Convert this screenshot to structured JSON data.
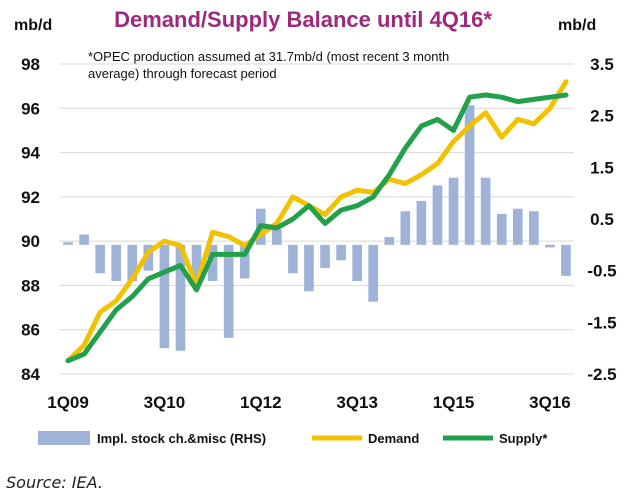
{
  "chart_data": {
    "type": "bar+line",
    "title": "Demand/Supply Balance until 4Q16*",
    "left_unit": "mb/d",
    "right_unit": "mb/d",
    "note_lines": [
      "*OPEC production assumed at 31.7mb/d  (most recent 3 month",
      "average) through forecast period"
    ],
    "x_ticks": [
      "1Q09",
      "3Q10",
      "1Q12",
      "3Q13",
      "1Q15",
      "3Q16"
    ],
    "y_left": {
      "min": 84,
      "max": 98,
      "ticks": [
        "84",
        "86",
        "88",
        "90",
        "92",
        "94",
        "96",
        "98"
      ]
    },
    "y_right": {
      "min": -2.5,
      "max": 3.5,
      "ticks": [
        "-2.5",
        "-1.5",
        "-0.5",
        "0.5",
        "1.5",
        "2.5",
        "3.5"
      ]
    },
    "categories": [
      "1Q09",
      "2Q09",
      "3Q09",
      "4Q09",
      "1Q10",
      "2Q10",
      "3Q10",
      "4Q10",
      "1Q11",
      "2Q11",
      "3Q11",
      "4Q11",
      "1Q12",
      "2Q12",
      "3Q12",
      "4Q12",
      "1Q13",
      "2Q13",
      "3Q13",
      "4Q13",
      "1Q14",
      "2Q14",
      "3Q14",
      "4Q14",
      "1Q15",
      "2Q15",
      "3Q15",
      "4Q15",
      "1Q16",
      "2Q16",
      "3Q16",
      "4Q16"
    ],
    "series": [
      {
        "name": "Impl. stock ch.&misc (RHS)",
        "type": "bar",
        "axis": "right",
        "color": "#9fb3d9",
        "values": [
          0.05,
          0.2,
          -0.55,
          -0.7,
          -0.7,
          -0.5,
          -2.0,
          -2.05,
          -0.7,
          -0.7,
          -1.8,
          -0.65,
          0.7,
          0.3,
          -0.55,
          -0.9,
          -0.45,
          -0.3,
          -0.7,
          -1.1,
          0.15,
          0.65,
          0.85,
          1.15,
          1.3,
          2.7,
          1.3,
          0.6,
          0.7,
          0.65,
          -0.05,
          -0.6
        ]
      },
      {
        "name": "Demand",
        "type": "line",
        "axis": "left",
        "color": "#f2c200",
        "values": [
          84.6,
          85.3,
          86.8,
          87.3,
          88.3,
          89.5,
          90.0,
          89.8,
          88.0,
          90.4,
          90.2,
          89.8,
          90.3,
          90.8,
          92.0,
          91.6,
          91.2,
          92.0,
          92.3,
          92.2,
          92.8,
          92.6,
          93.0,
          93.5,
          94.5,
          95.2,
          95.8,
          94.7,
          95.5,
          95.3,
          96.0,
          97.2
        ]
      },
      {
        "name": "Supply*",
        "type": "line",
        "axis": "left",
        "color": "#22a04b",
        "values": [
          84.6,
          84.9,
          85.9,
          86.9,
          87.5,
          88.3,
          88.6,
          88.9,
          87.8,
          89.4,
          89.4,
          89.4,
          90.7,
          90.6,
          91.0,
          91.6,
          90.8,
          91.4,
          91.6,
          92.0,
          93.0,
          94.2,
          95.2,
          95.5,
          95.0,
          96.5,
          96.6,
          96.5,
          96.3,
          96.4,
          96.5,
          96.6
        ]
      }
    ],
    "grid": true,
    "legend_position": "bottom"
  },
  "source": "Source: IEA."
}
